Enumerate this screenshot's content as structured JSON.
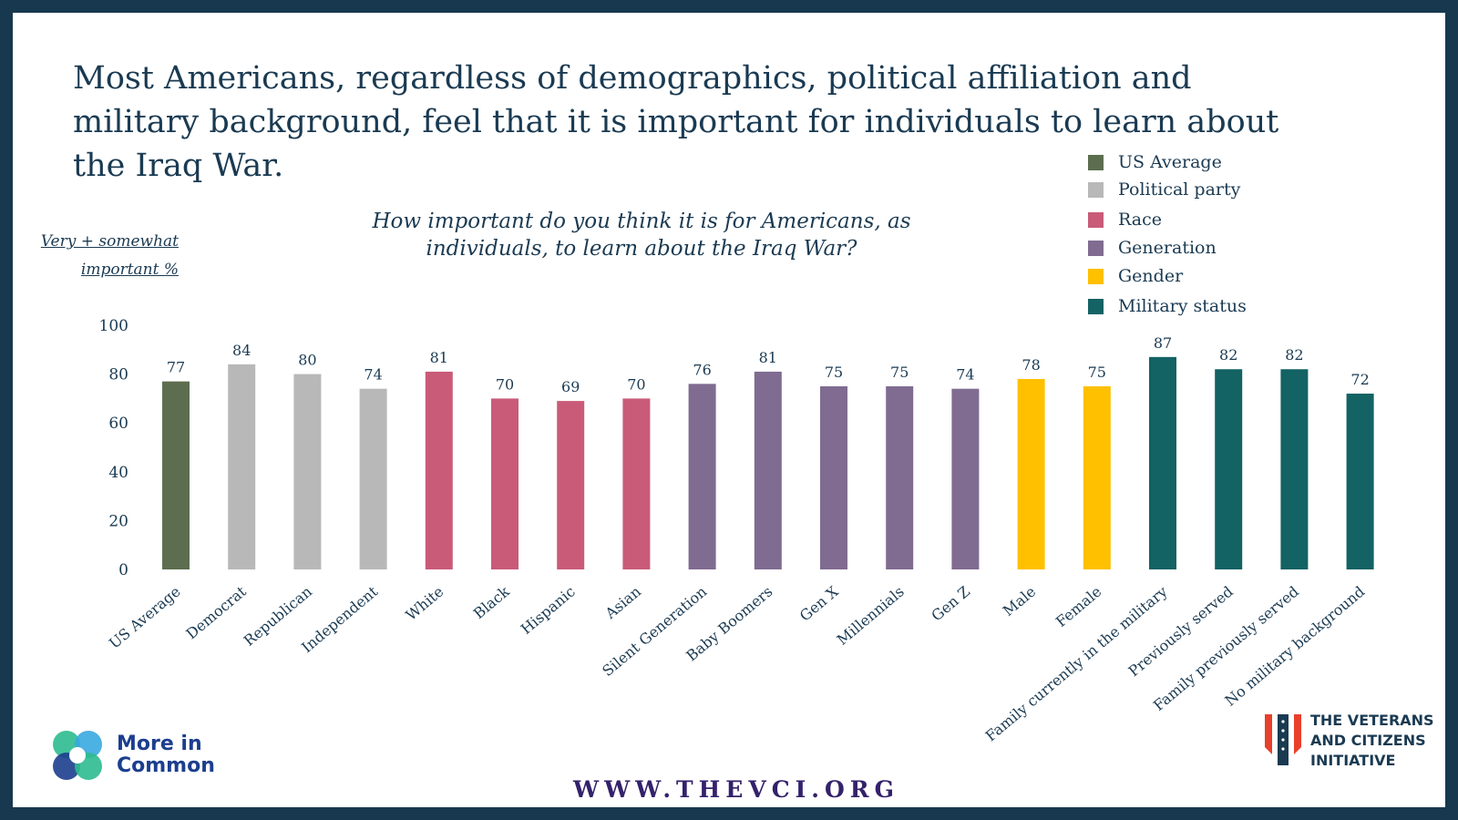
{
  "headline": "Most Americans, regardless of demographics, political affiliation and military background, feel that it is important for individuals to learn about the Iraq War.",
  "question": "How important do you think it is for Americans, as individuals, to learn about the Iraq War?",
  "ylabel_line1": "Very + somewhat",
  "ylabel_line2": "important %",
  "legend": [
    {
      "label": "US Average",
      "color": "#5c6e4f"
    },
    {
      "label": "Political party",
      "color": "#b8b8b8"
    },
    {
      "label": "Race",
      "color": "#c95b79"
    },
    {
      "label": "Generation",
      "color": "#806b91"
    },
    {
      "label": "Gender",
      "color": "#ffc000"
    },
    {
      "label": "Military status",
      "color": "#136264"
    }
  ],
  "chart_data": {
    "type": "bar",
    "title": "How important do you think it is for Americans, as individuals, to learn about the Iraq War?",
    "ylabel": "Very + somewhat important %",
    "ylim": [
      0,
      100
    ],
    "yticks": [
      0,
      20,
      40,
      60,
      80,
      100
    ],
    "categories": [
      "US Average",
      "Democrat",
      "Republican",
      "Independent",
      "White",
      "Black",
      "Hispanic",
      "Asian",
      "Silent Generation",
      "Baby Boomers",
      "Gen X",
      "Millennials",
      "Gen Z",
      "Male",
      "Female",
      "Family currently in the military",
      "Previously served",
      "Family previously served",
      "No military background"
    ],
    "values": [
      77,
      84,
      80,
      74,
      81,
      70,
      69,
      70,
      76,
      81,
      75,
      75,
      74,
      78,
      75,
      87,
      82,
      82,
      72
    ],
    "groups": [
      "US Average",
      "Political party",
      "Political party",
      "Political party",
      "Race",
      "Race",
      "Race",
      "Race",
      "Generation",
      "Generation",
      "Generation",
      "Generation",
      "Generation",
      "Gender",
      "Gender",
      "Military status",
      "Military status",
      "Military status",
      "Military status"
    ],
    "grid": false,
    "legend_position": "top-right"
  },
  "logos": {
    "more_in_common_line1": "More in",
    "more_in_common_line2": "Common",
    "vci_line1": "THE VETERANS",
    "vci_line2": "AND CITIZENS",
    "vci_line3": "INITIATIVE"
  },
  "url": "WWW.THEVCI.ORG"
}
